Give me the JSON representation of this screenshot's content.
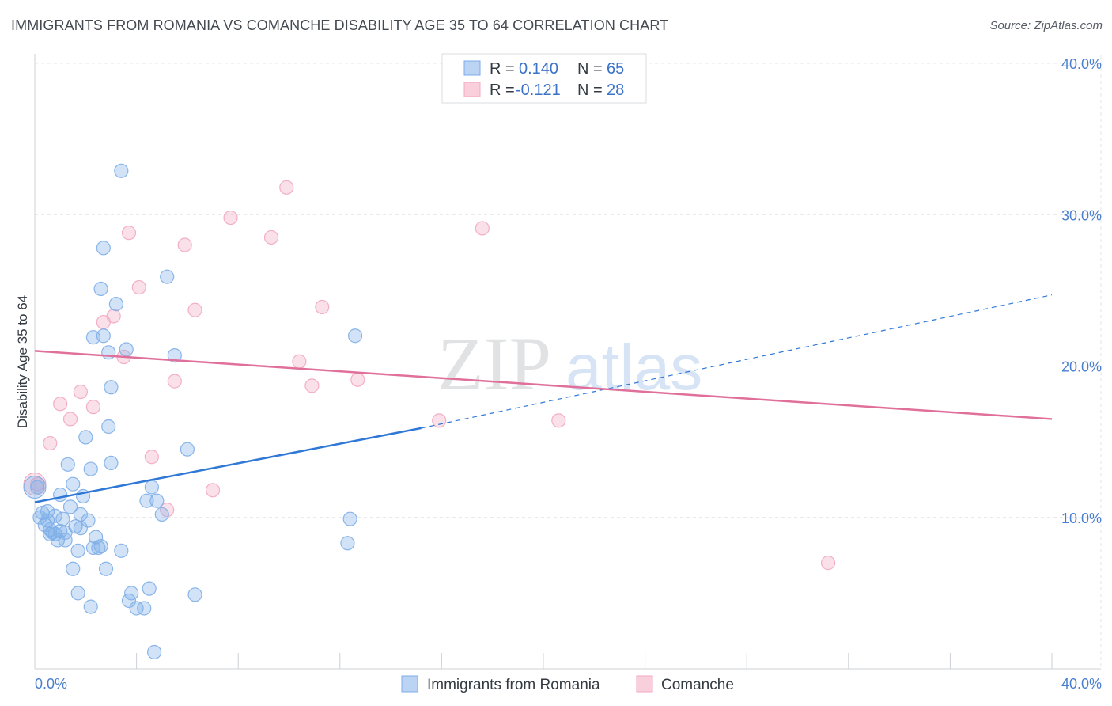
{
  "header": {
    "title": "IMMIGRANTS FROM ROMANIA VS COMANCHE DISABILITY AGE 35 TO 64 CORRELATION CHART",
    "source": "Source: ZipAtlas.com"
  },
  "colors": {
    "romania": "#7eaee8",
    "romania_line": "#2f78d6",
    "comanche": "#f2a7c0",
    "comanche_line": "#e0709a",
    "tick_text": "#4a7fd0"
  },
  "chart_data": {
    "type": "scatter",
    "title": "IMMIGRANTS FROM ROMANIA VS COMANCHE DISABILITY AGE 35 TO 64 CORRELATION CHART",
    "ylabel": "Disability Age 35 to 64",
    "xlabel": "",
    "xlim": [
      0,
      40
    ],
    "ylim": [
      0,
      40
    ],
    "x_tick_labels": [
      "0.0%",
      "40.0%"
    ],
    "y_tick_values": [
      10,
      20,
      30,
      40
    ],
    "y_tick_labels": [
      "10.0%",
      "20.0%",
      "30.0%",
      "40.0%"
    ],
    "grid": true,
    "legend_placement": "top-center",
    "watermark": "ZIPatlas",
    "legend": [
      {
        "r_label": "R =",
        "r": "0.140",
        "n_label": "N =",
        "n": "65"
      },
      {
        "r_label": "R =",
        "r": "-0.121",
        "n_label": "N =",
        "n": "28"
      }
    ],
    "series": [
      {
        "name": "Immigrants from Romania",
        "trend": {
          "x": [
            0,
            15.2
          ],
          "y": [
            11.0,
            15.9
          ],
          "dashed_to": [
            40,
            24.7
          ]
        },
        "points": [
          [
            0.1,
            12.0
          ],
          [
            0.2,
            10.0
          ],
          [
            0.3,
            10.3
          ],
          [
            0.4,
            9.5
          ],
          [
            0.5,
            9.8
          ],
          [
            0.6,
            9.2
          ],
          [
            0.7,
            9.0
          ],
          [
            0.8,
            8.9
          ],
          [
            0.9,
            8.5
          ],
          [
            1.0,
            9.1
          ],
          [
            1.1,
            9.9
          ],
          [
            1.2,
            8.5
          ],
          [
            1.3,
            13.5
          ],
          [
            1.4,
            10.7
          ],
          [
            1.5,
            12.2
          ],
          [
            1.6,
            9.4
          ],
          [
            1.7,
            7.8
          ],
          [
            1.8,
            10.2
          ],
          [
            1.9,
            11.4
          ],
          [
            2.0,
            15.3
          ],
          [
            2.1,
            9.8
          ],
          [
            2.2,
            13.2
          ],
          [
            2.3,
            8.0
          ],
          [
            2.4,
            8.7
          ],
          [
            2.5,
            8.0
          ],
          [
            2.3,
            21.9
          ],
          [
            2.6,
            25.1
          ],
          [
            2.7,
            22.0
          ],
          [
            2.8,
            6.6
          ],
          [
            2.9,
            16.0
          ],
          [
            3.0,
            13.6
          ],
          [
            2.7,
            27.8
          ],
          [
            2.9,
            20.9
          ],
          [
            3.0,
            18.6
          ],
          [
            3.2,
            24.1
          ],
          [
            3.4,
            7.8
          ],
          [
            3.4,
            32.9
          ],
          [
            3.6,
            21.1
          ],
          [
            3.8,
            5.0
          ],
          [
            4.0,
            4.0
          ],
          [
            4.3,
            4.0
          ],
          [
            4.5,
            5.3
          ],
          [
            4.4,
            11.1
          ],
          [
            4.6,
            12.0
          ],
          [
            4.8,
            11.1
          ],
          [
            5.0,
            10.2
          ],
          [
            5.2,
            25.9
          ],
          [
            5.5,
            20.7
          ],
          [
            6.0,
            14.5
          ],
          [
            6.3,
            4.9
          ],
          [
            4.7,
            1.1
          ],
          [
            3.7,
            4.5
          ],
          [
            1.5,
            6.6
          ],
          [
            1.7,
            5.0
          ],
          [
            2.2,
            4.1
          ],
          [
            2.6,
            8.1
          ],
          [
            1.0,
            11.5
          ],
          [
            0.8,
            10.1
          ],
          [
            0.6,
            8.9
          ],
          [
            1.8,
            9.3
          ],
          [
            12.6,
            22.0
          ],
          [
            12.3,
            8.3
          ],
          [
            12.4,
            9.9
          ],
          [
            0.5,
            10.4
          ],
          [
            1.2,
            9.0
          ]
        ]
      },
      {
        "name": "Comanche",
        "trend": {
          "x": [
            0,
            40
          ],
          "y": [
            21.0,
            16.5
          ]
        },
        "points": [
          [
            0.1,
            12.2
          ],
          [
            0.6,
            14.9
          ],
          [
            1.0,
            17.5
          ],
          [
            1.4,
            16.5
          ],
          [
            1.8,
            18.3
          ],
          [
            2.3,
            17.3
          ],
          [
            2.7,
            22.9
          ],
          [
            3.1,
            23.3
          ],
          [
            3.5,
            20.6
          ],
          [
            3.7,
            28.8
          ],
          [
            4.1,
            25.2
          ],
          [
            4.6,
            14.0
          ],
          [
            5.2,
            10.5
          ],
          [
            5.5,
            19.0
          ],
          [
            5.9,
            28.0
          ],
          [
            6.3,
            23.7
          ],
          [
            7.0,
            11.8
          ],
          [
            7.7,
            29.8
          ],
          [
            9.3,
            28.5
          ],
          [
            9.9,
            31.8
          ],
          [
            10.4,
            20.3
          ],
          [
            10.9,
            18.7
          ],
          [
            11.3,
            23.9
          ],
          [
            12.7,
            19.1
          ],
          [
            15.9,
            16.4
          ],
          [
            17.6,
            29.1
          ],
          [
            20.6,
            16.4
          ],
          [
            31.2,
            7.0
          ]
        ]
      }
    ]
  },
  "bottom_legend": [
    {
      "label": "Immigrants from Romania"
    },
    {
      "label": "Comanche"
    }
  ]
}
